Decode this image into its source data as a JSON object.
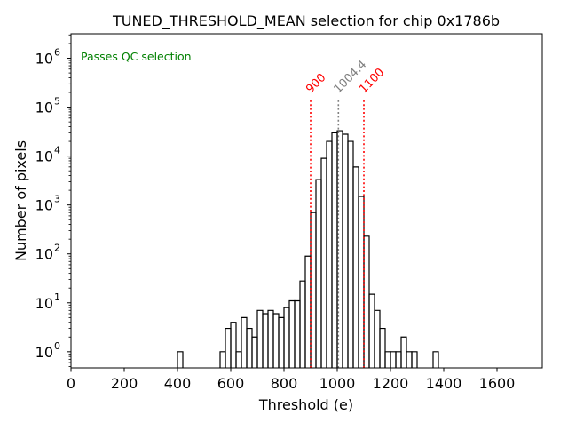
{
  "chart_data": {
    "type": "histogram",
    "title": "TUNED_THRESHOLD_MEAN selection for chip 0x1786b",
    "xlabel": "Threshold (e)",
    "ylabel": "Number of pixels",
    "xlim": [
      0,
      1770
    ],
    "ylim_log10": [
      -0.33,
      6.5
    ],
    "yscale": "log",
    "grid": false,
    "x_ticks": [
      0,
      200,
      400,
      600,
      800,
      1000,
      1200,
      1400,
      1600
    ],
    "x_tick_labels": [
      "0",
      "200",
      "400",
      "600",
      "800",
      "1000",
      "1200",
      "1400",
      "1600"
    ],
    "y_ticks": [
      0,
      1,
      2,
      3,
      4,
      5,
      6
    ],
    "y_tick_labels": [
      "10",
      "10",
      "10",
      "10",
      "10",
      "10",
      "10"
    ],
    "y_tick_exponents": [
      "0",
      "1",
      "2",
      "3",
      "4",
      "5",
      "6"
    ],
    "annotation": "Passes QC selection",
    "annotation_color": "#008000",
    "bin_width": 20,
    "bins": [
      {
        "x0": 400,
        "count": 1
      },
      {
        "x0": 560,
        "count": 1
      },
      {
        "x0": 580,
        "count": 3
      },
      {
        "x0": 600,
        "count": 4
      },
      {
        "x0": 620,
        "count": 1
      },
      {
        "x0": 640,
        "count": 5
      },
      {
        "x0": 660,
        "count": 3
      },
      {
        "x0": 680,
        "count": 2
      },
      {
        "x0": 700,
        "count": 7
      },
      {
        "x0": 720,
        "count": 6
      },
      {
        "x0": 740,
        "count": 7
      },
      {
        "x0": 760,
        "count": 6
      },
      {
        "x0": 780,
        "count": 5
      },
      {
        "x0": 800,
        "count": 8
      },
      {
        "x0": 820,
        "count": 11
      },
      {
        "x0": 840,
        "count": 11
      },
      {
        "x0": 860,
        "count": 28
      },
      {
        "x0": 880,
        "count": 90
      },
      {
        "x0": 900,
        "count": 700
      },
      {
        "x0": 920,
        "count": 3300
      },
      {
        "x0": 940,
        "count": 9000
      },
      {
        "x0": 960,
        "count": 20000
      },
      {
        "x0": 980,
        "count": 30000
      },
      {
        "x0": 1000,
        "count": 33000
      },
      {
        "x0": 1020,
        "count": 28000
      },
      {
        "x0": 1040,
        "count": 20000
      },
      {
        "x0": 1060,
        "count": 6000
      },
      {
        "x0": 1080,
        "count": 1500
      },
      {
        "x0": 1100,
        "count": 230
      },
      {
        "x0": 1120,
        "count": 15
      },
      {
        "x0": 1140,
        "count": 7
      },
      {
        "x0": 1160,
        "count": 3
      },
      {
        "x0": 1180,
        "count": 1
      },
      {
        "x0": 1200,
        "count": 1
      },
      {
        "x0": 1220,
        "count": 1
      },
      {
        "x0": 1240,
        "count": 2
      },
      {
        "x0": 1260,
        "count": 1
      },
      {
        "x0": 1280,
        "count": 1
      },
      {
        "x0": 1360,
        "count": 1
      }
    ],
    "vlines": [
      {
        "x": 900,
        "label": "900",
        "color": "#ff0000"
      },
      {
        "x": 1004.4,
        "label": "1004.4",
        "color": "#808080"
      },
      {
        "x": 1100,
        "label": "1100",
        "color": "#ff0000"
      }
    ]
  }
}
